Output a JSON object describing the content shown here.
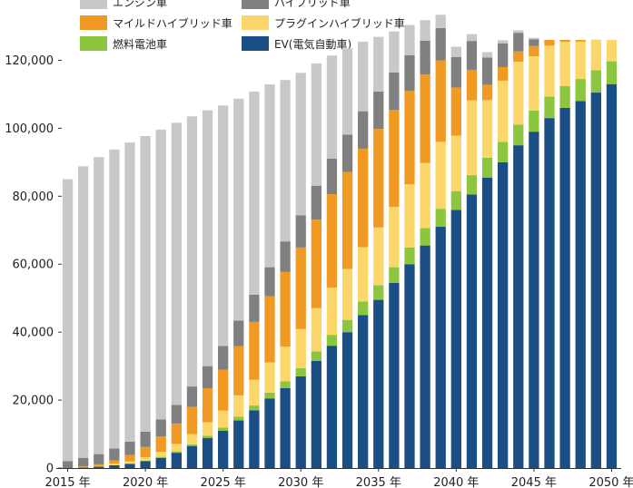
{
  "chart_data": {
    "type": "bar",
    "stacked": true,
    "x": [
      2015,
      2016,
      2017,
      2018,
      2019,
      2020,
      2021,
      2022,
      2023,
      2024,
      2025,
      2026,
      2027,
      2028,
      2029,
      2030,
      2031,
      2032,
      2033,
      2034,
      2035,
      2036,
      2037,
      2038,
      2039,
      2040,
      2041,
      2042,
      2043,
      2044,
      2045,
      2046,
      2047,
      2048,
      2049,
      2050
    ],
    "xticks": [
      "2015 年",
      "2020 年",
      "2025 年",
      "2030 年",
      "2035 年",
      "2040 年",
      "2045 年",
      "2050 年"
    ],
    "xtick_values": [
      2015,
      2020,
      2025,
      2030,
      2035,
      2040,
      2045,
      2050
    ],
    "yticks": [
      "0",
      "20,000",
      "40,000",
      "60,000",
      "80,000",
      "100,000",
      "120,000"
    ],
    "ylim": [
      0,
      126000
    ],
    "series": [
      {
        "name": "EV(電気自動車)",
        "color": "#1a4e84",
        "values": [
          0,
          200,
          400,
          800,
          1200,
          2000,
          3000,
          4500,
          6500,
          8800,
          11000,
          14000,
          17000,
          20500,
          23500,
          27000,
          31500,
          36000,
          40000,
          45000,
          49500,
          54500,
          60000,
          65500,
          71000,
          76000,
          80500,
          85500,
          90000,
          95000,
          99000,
          103000,
          106000,
          108000,
          110500,
          113000
        ]
      },
      {
        "name": "燃料電池車",
        "color": "#8cc63f",
        "values": [
          0,
          0,
          0,
          50,
          100,
          200,
          300,
          400,
          500,
          700,
          900,
          1100,
          1400,
          1700,
          2000,
          2400,
          2800,
          3200,
          3600,
          4000,
          4300,
          4600,
          4900,
          5100,
          5300,
          5500,
          5700,
          5800,
          6000,
          6100,
          6200,
          6300,
          6400,
          6500,
          6600,
          6700
        ]
      },
      {
        "name": "プラグインハイブリッド車",
        "color": "#fbd66a",
        "values": [
          0,
          100,
          200,
          400,
          700,
          1000,
          1500,
          2200,
          3000,
          4000,
          5000,
          6300,
          7600,
          8900,
          10200,
          11500,
          12800,
          13900,
          15000,
          16000,
          17000,
          17800,
          18600,
          19200,
          19700,
          16300,
          22000,
          17000,
          18000,
          18500,
          16000,
          15000,
          13000,
          11000,
          9000,
          6300
        ]
      },
      {
        "name": "マイルドハイブリッド車",
        "color": "#f09a23",
        "values": [
          0,
          200,
          500,
          1000,
          1800,
          3000,
          4500,
          6000,
          8000,
          10000,
          12000,
          14500,
          17000,
          19500,
          22000,
          24000,
          26000,
          27500,
          28500,
          29000,
          29000,
          28500,
          27500,
          26000,
          24000,
          14200,
          9000,
          4500,
          4000,
          3000,
          3000,
          1700,
          600,
          500,
          0,
          0
        ]
      },
      {
        "name": "ハイブリッド車",
        "color": "#808080",
        "values": [
          2000,
          2500,
          3000,
          3500,
          4000,
          4500,
          5000,
          5500,
          6000,
          6500,
          7000,
          7500,
          8000,
          8500,
          9000,
          9500,
          10000,
          10500,
          11000,
          11000,
          11000,
          11000,
          10500,
          10000,
          9500,
          9000,
          8500,
          8000,
          7000,
          5500,
          2000,
          0,
          0,
          0,
          0,
          0
        ]
      },
      {
        "name": "エンジン車",
        "color": "#c8c8c8",
        "values": [
          83000,
          85800,
          87400,
          88000,
          88000,
          87000,
          85300,
          83000,
          79500,
          75300,
          70800,
          65300,
          59800,
          53800,
          47500,
          41900,
          36000,
          30300,
          25400,
          20500,
          16100,
          12100,
          8900,
          6000,
          3900,
          3000,
          2000,
          1600,
          900,
          700,
          400,
          0,
          0,
          0,
          0,
          0
        ]
      }
    ],
    "legend": [
      {
        "name": "エンジン車",
        "color": "#c8c8c8"
      },
      {
        "name": "ハイブリッド車",
        "color": "#808080"
      },
      {
        "name": "マイルドハイブリッド車",
        "color": "#f09a23"
      },
      {
        "name": "プラグインハイブリッド車",
        "color": "#fbd66a"
      },
      {
        "name": "燃料電池車",
        "color": "#8cc63f"
      },
      {
        "name": "EV(電気自動車)",
        "color": "#1a4e84"
      }
    ],
    "legend_position": "top",
    "grid": false,
    "title": "",
    "xlabel": "",
    "ylabel": ""
  }
}
